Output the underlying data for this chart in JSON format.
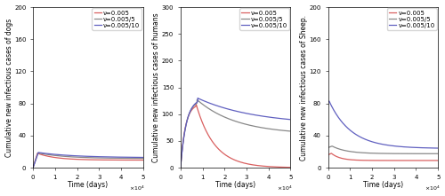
{
  "panels": [
    {
      "ylabel": "Cumulative new infectious cases of dogs",
      "ylim": [
        0,
        200
      ],
      "yticks": [
        0,
        40,
        80,
        120,
        160,
        200
      ]
    },
    {
      "ylabel": "Cumulative new infectious cases of humans",
      "ylim": [
        0,
        300
      ],
      "yticks": [
        0,
        50,
        100,
        150,
        200,
        250,
        300
      ]
    },
    {
      "ylabel": "Cumulative new infectious cases of Sheep.",
      "ylim": [
        0,
        200
      ],
      "yticks": [
        0,
        40,
        80,
        120,
        160,
        200
      ]
    }
  ],
  "xlabel": "Time (days)",
  "xlim": [
    0,
    50000
  ],
  "xtick_vals": [
    0,
    10000,
    20000,
    30000,
    40000,
    50000
  ],
  "xtick_labels": [
    "0",
    "1",
    "2",
    "3",
    "4",
    "5"
  ],
  "nu_labels": [
    "ν=0.005",
    "ν=0.005/5",
    "ν=0.005/10"
  ],
  "line_colors": [
    "#d96060",
    "#888888",
    "#6060c0"
  ],
  "figsize": [
    5.0,
    2.21
  ],
  "dpi": 100,
  "legend_fontsize": 5.0,
  "axis_fontsize": 5.5,
  "tick_fontsize": 5.0,
  "dog_params": [
    {
      "peak": 18.0,
      "t_peak": 2000,
      "decay": 0.00012,
      "asymptote": 9.5
    },
    {
      "peak": 18.5,
      "t_peak": 2200,
      "decay": 8e-05,
      "asymptote": 11.5
    },
    {
      "peak": 19.0,
      "t_peak": 2400,
      "decay": 6e-05,
      "asymptote": 12.5
    }
  ],
  "human_params": [
    {
      "peak": 120.0,
      "t_peak": 7000,
      "rise": 0.00045,
      "decay": 0.00012,
      "asymptote": 0.0
    },
    {
      "peak": 127.0,
      "t_peak": 7500,
      "rise": 0.0004,
      "decay": 5.5e-05,
      "asymptote": 62.0
    },
    {
      "peak": 130.0,
      "t_peak": 7800,
      "rise": 0.00038,
      "decay": 3.8e-05,
      "asymptote": 80.0
    }
  ],
  "sheep_params": [
    {
      "start": 16.0,
      "peak": 18.0,
      "t_peak": 1500,
      "decay": 0.00025,
      "asymptote": 9.0
    },
    {
      "start": 25.0,
      "peak": 27.0,
      "t_peak": 1800,
      "decay": 0.00015,
      "asymptote": 17.5
    },
    {
      "start": 82.0,
      "peak": 83.0,
      "t_peak": 500,
      "decay": 0.0001,
      "asymptote": 24.0
    }
  ]
}
